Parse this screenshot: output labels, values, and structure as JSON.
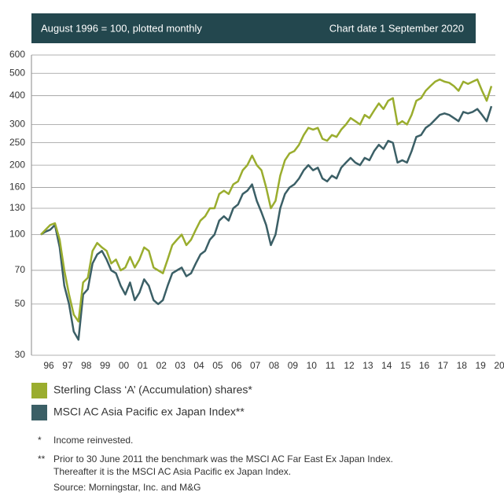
{
  "chart_data": {
    "type": "line",
    "subtitle": "August 1996 = 100, plotted monthly",
    "title": "Chart date 1 September 2020",
    "log_scale": true,
    "grid": true,
    "ylim": [
      30,
      600
    ],
    "yticks": [
      30,
      50,
      70,
      100,
      130,
      160,
      200,
      250,
      300,
      400,
      500,
      600
    ],
    "categories": [
      "96",
      null,
      null,
      null,
      "97",
      null,
      null,
      null,
      "98",
      null,
      null,
      null,
      "99",
      null,
      null,
      null,
      "00",
      null,
      null,
      null,
      "01",
      null,
      null,
      null,
      "02",
      null,
      null,
      null,
      "03",
      null,
      null,
      null,
      "04",
      null,
      null,
      null,
      "05",
      null,
      null,
      null,
      "06",
      null,
      null,
      null,
      "07",
      null,
      null,
      null,
      "08",
      null,
      null,
      null,
      "09",
      null,
      null,
      null,
      "10",
      null,
      null,
      null,
      "11",
      null,
      null,
      null,
      "12",
      null,
      null,
      null,
      "13",
      null,
      null,
      null,
      "14",
      null,
      null,
      null,
      "15",
      null,
      null,
      null,
      "16",
      null,
      null,
      null,
      "17",
      null,
      null,
      null,
      "18",
      null,
      null,
      null,
      "19",
      null,
      null,
      null,
      "20"
    ],
    "series": [
      {
        "name": "Sterling Class ‘A’ (Accumulation) shares*",
        "color": "#9aad2e",
        "values": [
          100,
          105,
          110,
          112,
          95,
          70,
          55,
          45,
          42,
          62,
          65,
          85,
          92,
          88,
          85,
          75,
          78,
          70,
          72,
          80,
          72,
          78,
          88,
          85,
          72,
          70,
          68,
          78,
          90,
          95,
          100,
          90,
          95,
          105,
          115,
          120,
          130,
          130,
          150,
          155,
          150,
          165,
          170,
          190,
          200,
          220,
          200,
          190,
          160,
          130,
          140,
          180,
          210,
          225,
          230,
          245,
          270,
          290,
          285,
          290,
          260,
          255,
          270,
          265,
          285,
          300,
          320,
          310,
          300,
          330,
          320,
          345,
          370,
          350,
          380,
          390,
          300,
          310,
          300,
          330,
          380,
          390,
          420,
          440,
          460,
          470,
          460,
          455,
          440,
          420,
          460,
          450,
          460,
          470,
          420,
          380,
          440
        ]
      },
      {
        "name": "MSCI AC Asia Pacific ex Japan Index**",
        "color": "#3b5f66",
        "values": [
          100,
          103,
          105,
          110,
          88,
          60,
          50,
          38,
          35,
          55,
          58,
          75,
          82,
          85,
          78,
          70,
          68,
          60,
          55,
          62,
          52,
          56,
          64,
          60,
          52,
          50,
          52,
          60,
          68,
          70,
          72,
          66,
          68,
          75,
          82,
          85,
          95,
          100,
          115,
          120,
          115,
          130,
          135,
          150,
          155,
          165,
          140,
          125,
          110,
          90,
          100,
          130,
          150,
          160,
          165,
          175,
          190,
          200,
          190,
          195,
          175,
          170,
          180,
          175,
          195,
          205,
          215,
          205,
          200,
          215,
          210,
          230,
          245,
          235,
          255,
          250,
          205,
          210,
          205,
          230,
          265,
          270,
          290,
          300,
          315,
          330,
          335,
          330,
          320,
          310,
          340,
          335,
          340,
          350,
          330,
          310,
          360
        ]
      }
    ],
    "notes": [
      {
        "marker": "*",
        "lines": [
          "Income reinvested."
        ]
      },
      {
        "marker": "**",
        "lines": [
          "Prior to 30 June 2011 the benchmark was the MSCI AC Far East Ex Japan Index.",
          "Thereafter it is the MSCI AC Asia Pacific ex Japan Index."
        ]
      }
    ],
    "source": "Source: Morningstar, Inc. and M&G"
  }
}
